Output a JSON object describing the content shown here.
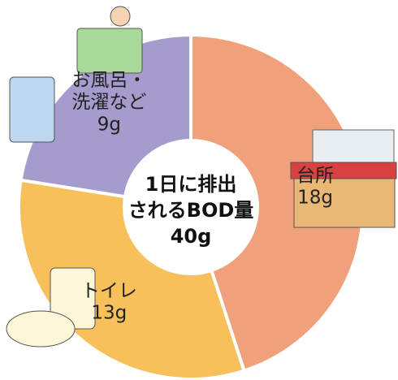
{
  "chart_data": {
    "type": "donut",
    "categories": [
      "台所",
      "トイレ",
      "お風呂・洗濯など"
    ],
    "values": [
      18,
      13,
      9
    ],
    "value_labels": [
      "18g",
      "13g",
      "9g"
    ],
    "colors": [
      "#f0a07a",
      "#f7c05a",
      "#a59bcc"
    ],
    "center_text": [
      "1日に排出",
      "されるBOD量",
      "40g"
    ]
  }
}
